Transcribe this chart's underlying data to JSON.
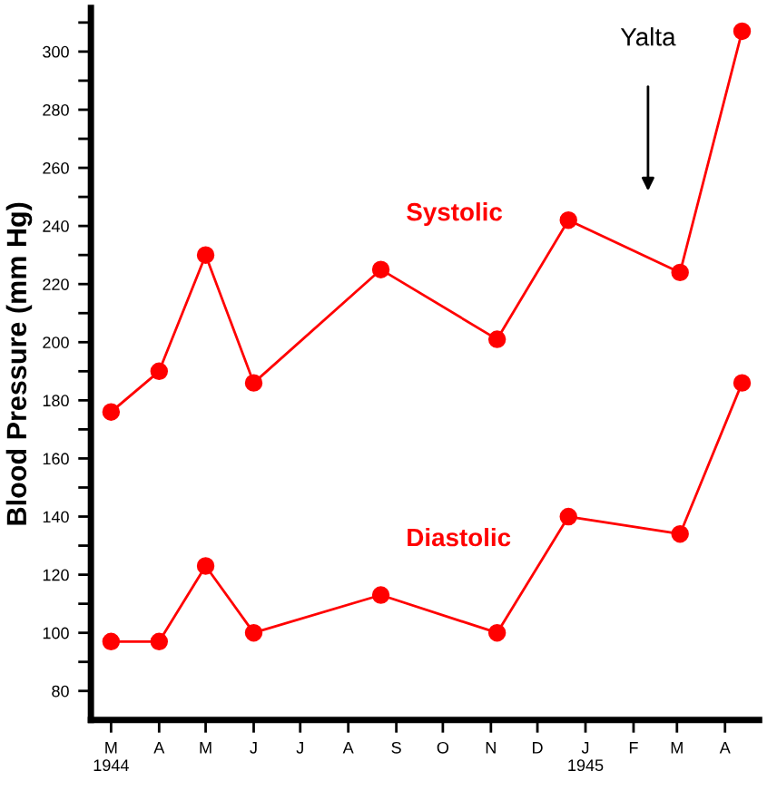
{
  "chart_data": {
    "type": "line",
    "ylabel": "Blood Pressure (mm Hg)",
    "xlim": [
      "1944-02-17",
      "1945-04-23"
    ],
    "ylim": [
      70,
      315
    ],
    "xticks": [
      {
        "value": "1944-03-01",
        "label": "M\n1944"
      },
      {
        "value": "1944-04-01",
        "label": "A"
      },
      {
        "value": "1944-05-01",
        "label": "M"
      },
      {
        "value": "1944-06-01",
        "label": "J"
      },
      {
        "value": "1944-07-01",
        "label": "J"
      },
      {
        "value": "1944-08-01",
        "label": "A"
      },
      {
        "value": "1944-09-01",
        "label": "S"
      },
      {
        "value": "1944-10-01",
        "label": "O"
      },
      {
        "value": "1944-11-01",
        "label": "N"
      },
      {
        "value": "1944-12-01",
        "label": "D"
      },
      {
        "value": "1945-01-01",
        "label": "J\n1945"
      },
      {
        "value": "1945-02-01",
        "label": "F"
      },
      {
        "value": "1945-03-01",
        "label": "M"
      },
      {
        "value": "1945-04-01",
        "label": "A"
      }
    ],
    "yticks": [
      80,
      {
        "value": 90,
        "label": null
      },
      100,
      {
        "value": 110,
        "label": null
      },
      120,
      {
        "value": 130,
        "label": null
      },
      140,
      {
        "value": 150,
        "label": null
      },
      160,
      {
        "value": 170,
        "label": null
      },
      180,
      {
        "value": 190,
        "label": null
      },
      200,
      {
        "value": 210,
        "label": null
      },
      220,
      {
        "value": 230,
        "label": null
      },
      240,
      {
        "value": 250,
        "label": null
      },
      260,
      {
        "value": 270,
        "label": null
      },
      280,
      {
        "value": 290,
        "label": null
      },
      300,
      {
        "value": 310,
        "label": null
      }
    ],
    "x": [
      "1944-03-01",
      "1944-04-01",
      "1944-05-01",
      "1944-06-01",
      "1944-08-22",
      "1944-11-05",
      "1944-12-21",
      "1945-03-03",
      "1945-04-12"
    ],
    "series": [
      {
        "name": "Systolic",
        "color": "#ff0000",
        "values": [
          176,
          190,
          230,
          186,
          225,
          201,
          242,
          224,
          307
        ]
      },
      {
        "name": "Diastolic",
        "color": "#ff0000",
        "values": [
          97,
          97,
          123,
          100,
          113,
          100,
          140,
          134,
          186
        ]
      }
    ],
    "annotations": [
      "Yalta"
    ],
    "marker": "circle",
    "line_style": "solid",
    "grid": false,
    "legend": false
  }
}
